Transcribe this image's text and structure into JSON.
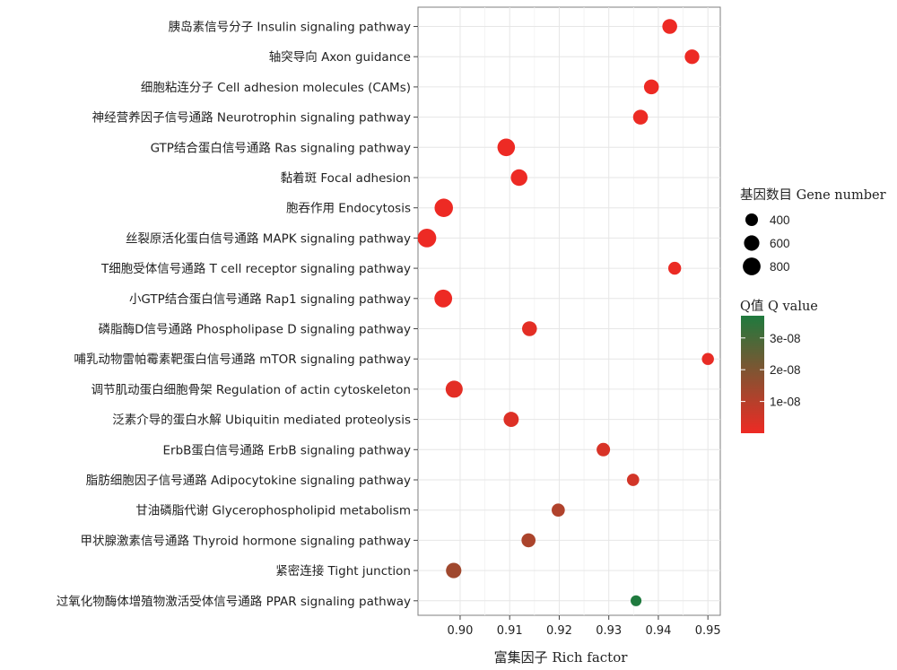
{
  "chart_data": {
    "type": "scatter",
    "xlabel": "富集因子 Rich factor",
    "ylabel": "",
    "xlim": [
      0.8915,
      0.9525
    ],
    "x_ticks": [
      "0.90",
      "0.91",
      "0.92",
      "0.93",
      "0.94",
      "0.95"
    ],
    "grid": true,
    "legend_position": "right",
    "size_legend": {
      "title": "基因数目 Gene number",
      "entries": [
        {
          "label": "400",
          "value": 400
        },
        {
          "label": "600",
          "value": 600
        },
        {
          "label": "800",
          "value": 800
        }
      ]
    },
    "color_legend": {
      "title": "Q值 Q value",
      "low_color": "#ee2a24",
      "high_color": "#1f7a3e",
      "ticks": [
        "1e-08",
        "2e-08",
        "3e-08"
      ],
      "tick_values": [
        1e-08,
        2e-08,
        3e-08
      ],
      "range": [
        0,
        3.7e-08
      ]
    },
    "points": [
      {
        "label": "胰岛素信号分子 Insulin signaling pathway",
        "x": 0.9423,
        "gene_number": 560,
        "q_value": 1e-10
      },
      {
        "label": "轴突导向 Axon guidance",
        "x": 0.9468,
        "gene_number": 540,
        "q_value": 1e-10
      },
      {
        "label": "细胞粘连分子 Cell adhesion molecules (CAMs)",
        "x": 0.9386,
        "gene_number": 560,
        "q_value": 2e-10
      },
      {
        "label": "神经营养因子信号通路 Neurotrophin signaling pathway",
        "x": 0.9364,
        "gene_number": 560,
        "q_value": 3e-10
      },
      {
        "label": "GTP结合蛋白信号通路 Ras signaling pathway",
        "x": 0.9093,
        "gene_number": 780,
        "q_value": 1e-10
      },
      {
        "label": "黏着斑 Focal adhesion",
        "x": 0.9119,
        "gene_number": 700,
        "q_value": 1e-10
      },
      {
        "label": "胞吞作用 Endocytosis",
        "x": 0.8967,
        "gene_number": 860,
        "q_value": 1e-10
      },
      {
        "label": "丝裂原活化蛋白信号通路 MAPK signaling pathway",
        "x": 0.8933,
        "gene_number": 880,
        "q_value": 1e-10
      },
      {
        "label": "T细胞受体信号通路 T cell receptor signaling pathway",
        "x": 0.9433,
        "gene_number": 420,
        "q_value": 5e-10
      },
      {
        "label": "小GTP结合蛋白信号通路 Rap1 signaling pathway",
        "x": 0.8966,
        "gene_number": 800,
        "q_value": 2e-10
      },
      {
        "label": "磷脂酶D信号通路 Phospholipase D signaling pathway",
        "x": 0.914,
        "gene_number": 560,
        "q_value": 2e-09
      },
      {
        "label": "哺乳动物雷帕霉素靶蛋白信号通路 mTOR signaling pathway",
        "x": 0.95,
        "gene_number": 370,
        "q_value": 1e-09
      },
      {
        "label": "调节肌动蛋白细胞骨架 Regulation of actin cytoskeleton",
        "x": 0.8988,
        "gene_number": 740,
        "q_value": 2e-09
      },
      {
        "label": "泛素介导的蛋白水解 Ubiquitin mediated proteolysis",
        "x": 0.9103,
        "gene_number": 580,
        "q_value": 3e-09
      },
      {
        "label": "ErbB蛋白信号通路 ErbB signaling pathway",
        "x": 0.9289,
        "gene_number": 460,
        "q_value": 4e-09
      },
      {
        "label": "脂肪细胞因子信号通路 Adipocytokine signaling pathway",
        "x": 0.9349,
        "gene_number": 380,
        "q_value": 5e-09
      },
      {
        "label": "甘油磷脂代谢 Glycerophospholipid metabolism",
        "x": 0.9198,
        "gene_number": 440,
        "q_value": 1.1e-08
      },
      {
        "label": "甲状腺激素信号通路 Thyroid hormone signaling pathway",
        "x": 0.9138,
        "gene_number": 500,
        "q_value": 1.2e-08
      },
      {
        "label": "紧密连接 Tight junction",
        "x": 0.8987,
        "gene_number": 600,
        "q_value": 1.4e-08
      },
      {
        "label": "过氧化物酶体增殖物激活受体信号通路 PPAR signaling pathway",
        "x": 0.9355,
        "gene_number": 300,
        "q_value": 3.7e-08
      }
    ]
  }
}
